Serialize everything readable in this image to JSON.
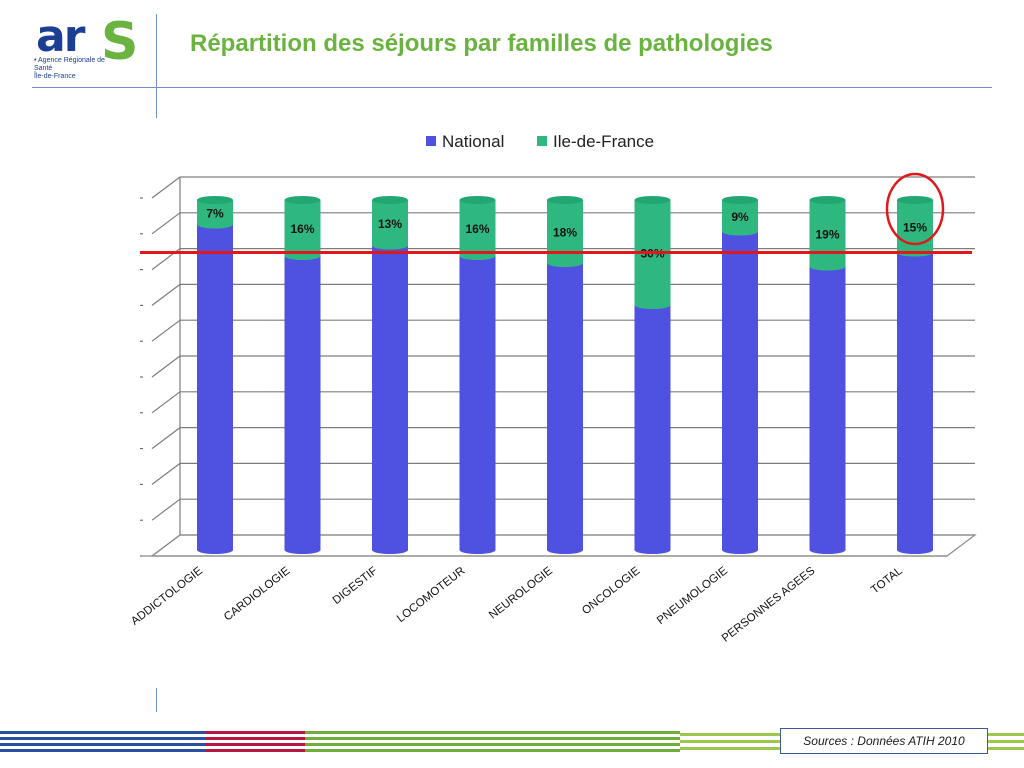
{
  "logo": {
    "text": "ar",
    "s": "S",
    "subtitle_line1": "• Agence Régionale de Santé",
    "subtitle_line2": "Île-de-France"
  },
  "page_title": "Répartition des séjours par familles de pathologies",
  "footer": {
    "sources": "Sources :  Données ATIH 2010"
  },
  "colors": {
    "national": "#4f52e0",
    "idf": "#2eb880",
    "reference_line": "#e0181b",
    "highlight_circle": "#e0181b",
    "title": "#6ab33f",
    "brand_blue": "#1c3f93"
  },
  "chart_data": {
    "type": "bar",
    "stacked": true,
    "normalized_percent": true,
    "categories": [
      "ADDICTOLOGIE",
      "CARDIOLOGIE",
      "DIGESTIF",
      "LOCOMOTEUR",
      "NEUROLOGIE",
      "ONCOLOGIE",
      "PNEUMOLOGIE",
      "PERSONNES AGEES",
      "TOTAL"
    ],
    "series": [
      {
        "name": "National",
        "values": [
          93,
          84,
          87,
          84,
          82,
          70,
          91,
          81,
          85
        ]
      },
      {
        "name": "Ile-de-France",
        "values": [
          7,
          16,
          13,
          16,
          18,
          30,
          9,
          19,
          15
        ]
      }
    ],
    "data_labels": [
      "7%",
      "16%",
      "13%",
      "16%",
      "18%",
      "30%",
      "9%",
      "19%",
      "15%"
    ],
    "ylim": [
      0,
      100
    ],
    "reference_line_value": 85,
    "highlighted_category": "TOTAL",
    "legend_position": "top",
    "grid": true
  }
}
